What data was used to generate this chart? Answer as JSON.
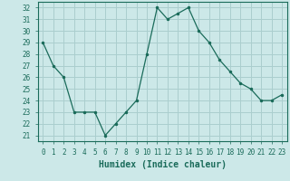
{
  "x": [
    0,
    1,
    2,
    3,
    4,
    5,
    6,
    7,
    8,
    9,
    10,
    11,
    12,
    13,
    14,
    15,
    16,
    17,
    18,
    19,
    20,
    21,
    22,
    23
  ],
  "y": [
    29,
    27,
    26,
    23,
    23,
    23,
    21,
    22,
    23,
    24,
    28,
    32,
    31,
    31.5,
    32,
    30,
    29,
    27.5,
    26.5,
    25.5,
    25,
    24,
    24,
    24.5
  ],
  "line_color": "#1a6b5a",
  "marker": ".",
  "marker_size": 3,
  "bg_color": "#cce8e8",
  "grid_color": "#aacece",
  "xlabel": "Humidex (Indice chaleur)",
  "xlim": [
    -0.5,
    23.5
  ],
  "ylim": [
    20.5,
    32.5
  ],
  "yticks": [
    21,
    22,
    23,
    24,
    25,
    26,
    27,
    28,
    29,
    30,
    31,
    32
  ],
  "xticks": [
    0,
    1,
    2,
    3,
    4,
    5,
    6,
    7,
    8,
    9,
    10,
    11,
    12,
    13,
    14,
    15,
    16,
    17,
    18,
    19,
    20,
    21,
    22,
    23
  ],
  "tick_label_size": 5.5,
  "xlabel_size": 7,
  "tick_color": "#1a6b5a",
  "spine_color": "#1a6b5a"
}
